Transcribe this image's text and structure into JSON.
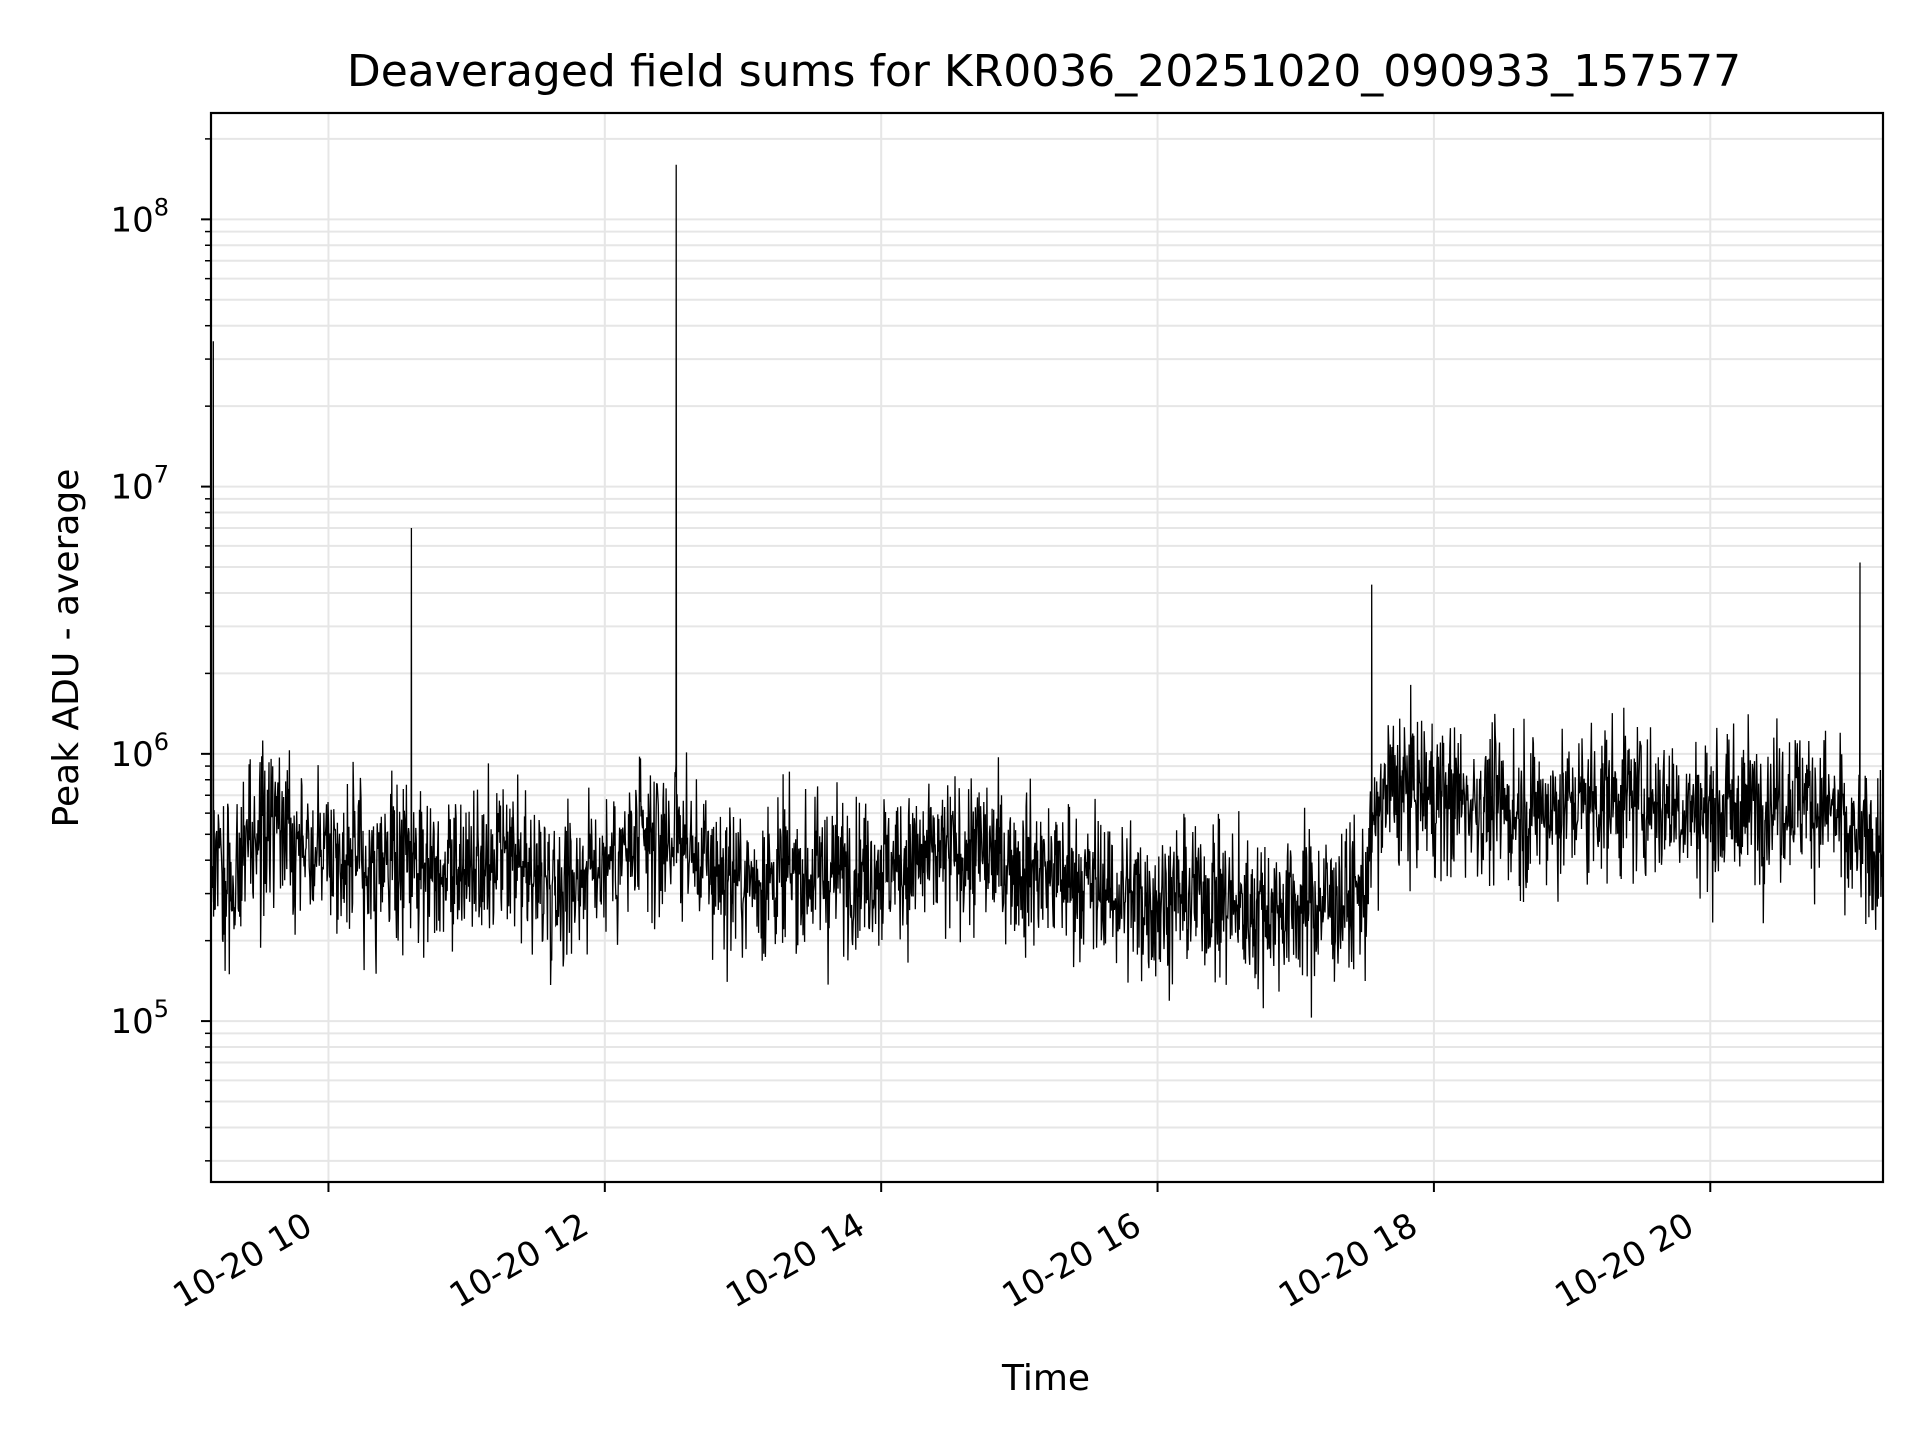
{
  "chart_data": {
    "type": "line",
    "title": "Deaveraged field sums for KR0036_20251020_090933_157577",
    "xlabel": "Time",
    "ylabel": "Peak ADU - average",
    "yscale": "log",
    "ylim": [
      25000,
      250000000
    ],
    "xlim": [
      "2025-10-20 09:09",
      "2025-10-20 21:15"
    ],
    "grid": true,
    "line_color": "#000000",
    "grid_color": "#e6e6e6",
    "x_ticks": [
      {
        "value": "2025-10-20 10:00",
        "label": "10-20 10"
      },
      {
        "value": "2025-10-20 12:00",
        "label": "10-20 12"
      },
      {
        "value": "2025-10-20 14:00",
        "label": "10-20 14"
      },
      {
        "value": "2025-10-20 16:00",
        "label": "10-20 16"
      },
      {
        "value": "2025-10-20 18:00",
        "label": "10-20 18"
      },
      {
        "value": "2025-10-20 20:00",
        "label": "10-20 20"
      }
    ],
    "y_ticks": [
      {
        "value": 100000,
        "base": "10",
        "exp": "5"
      },
      {
        "value": 1000000,
        "base": "10",
        "exp": "6"
      },
      {
        "value": 10000000,
        "base": "10",
        "exp": "7"
      },
      {
        "value": 100000000,
        "base": "10",
        "exp": "8"
      }
    ],
    "series": [
      {
        "x": [
          "2025-10-20 09:09",
          "2025-10-20 09:10",
          "2025-10-20 09:12",
          "2025-10-20 09:15",
          "2025-10-20 09:20",
          "2025-10-20 09:30",
          "2025-10-20 09:40",
          "2025-10-20 10:00",
          "2025-10-20 10:20",
          "2025-10-20 10:30",
          "2025-10-20 10:36",
          "2025-10-20 10:37",
          "2025-10-20 10:45",
          "2025-10-20 11:00",
          "2025-10-20 11:20",
          "2025-10-20 11:40",
          "2025-10-20 12:00",
          "2025-10-20 12:20",
          "2025-10-20 12:30",
          "2025-10-20 12:31",
          "2025-10-20 12:32",
          "2025-10-20 12:40",
          "2025-10-20 13:00",
          "2025-10-20 13:20",
          "2025-10-20 13:40",
          "2025-10-20 14:00",
          "2025-10-20 14:20",
          "2025-10-20 14:40",
          "2025-10-20 15:00",
          "2025-10-20 15:20",
          "2025-10-20 15:40",
          "2025-10-20 16:00",
          "2025-10-20 16:20",
          "2025-10-20 16:40",
          "2025-10-20 17:00",
          "2025-10-20 17:20",
          "2025-10-20 17:30",
          "2025-10-20 17:33",
          "2025-10-20 17:40",
          "2025-10-20 18:00",
          "2025-10-20 18:20",
          "2025-10-20 18:40",
          "2025-10-20 19:00",
          "2025-10-20 19:20",
          "2025-10-20 19:40",
          "2025-10-20 20:00",
          "2025-10-20 20:20",
          "2025-10-20 20:40",
          "2025-10-20 20:55",
          "2025-10-20 21:00",
          "2025-10-20 21:05",
          "2025-10-20 21:15"
        ],
        "y": [
          300000,
          35000000,
          400000,
          300000,
          350000,
          500000,
          550000,
          450000,
          350000,
          400000,
          7000000,
          400000,
          400000,
          350000,
          380000,
          330000,
          400000,
          450000,
          500000,
          160000000,
          500000,
          400000,
          330000,
          350000,
          360000,
          380000,
          400000,
          430000,
          380000,
          350000,
          300000,
          280000,
          300000,
          260000,
          270000,
          280000,
          300000,
          4300000,
          750000,
          700000,
          650000,
          600000,
          650000,
          700000,
          650000,
          600000,
          650000,
          700000,
          600000,
          450000,
          5200000,
          450000
        ]
      }
    ]
  }
}
